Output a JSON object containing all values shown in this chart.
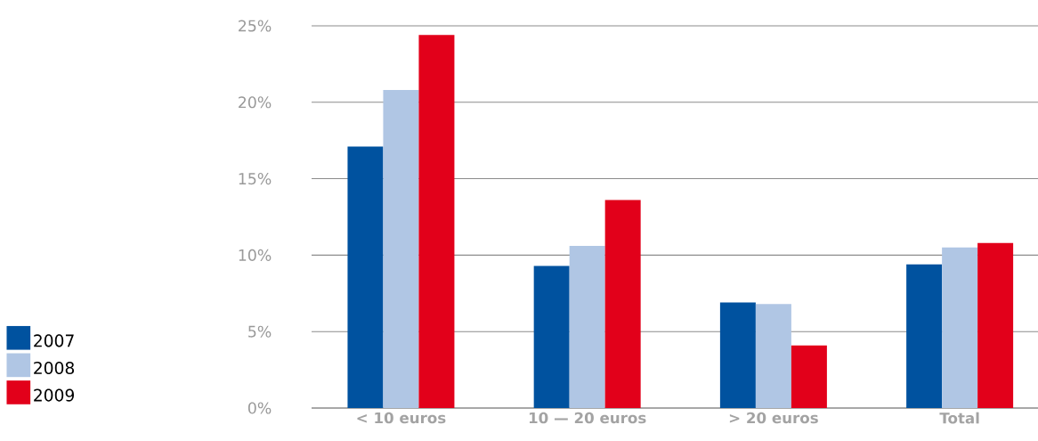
{
  "chart_data": {
    "type": "bar",
    "categories": [
      "< 10 euros",
      "10 — 20 euros",
      "> 20 euros",
      "Total"
    ],
    "series": [
      {
        "name": "2007",
        "color": "#00529f",
        "values": [
          17.1,
          9.3,
          6.9,
          9.4
        ]
      },
      {
        "name": "2008",
        "color": "#b0c6e4",
        "values": [
          20.8,
          10.6,
          6.8,
          10.5
        ]
      },
      {
        "name": "2009",
        "color": "#e2001a",
        "values": [
          24.4,
          13.6,
          4.1,
          10.8
        ]
      }
    ],
    "ylim": [
      0,
      25
    ],
    "yticks": [
      {
        "value": 0,
        "label": "0%"
      },
      {
        "value": 5,
        "label": "5%"
      },
      {
        "value": 10,
        "label": "10%"
      },
      {
        "value": 15,
        "label": "15%"
      },
      {
        "value": 20,
        "label": "20%"
      },
      {
        "value": 25,
        "label": "25%"
      }
    ],
    "grid": "y",
    "legend": "left"
  }
}
